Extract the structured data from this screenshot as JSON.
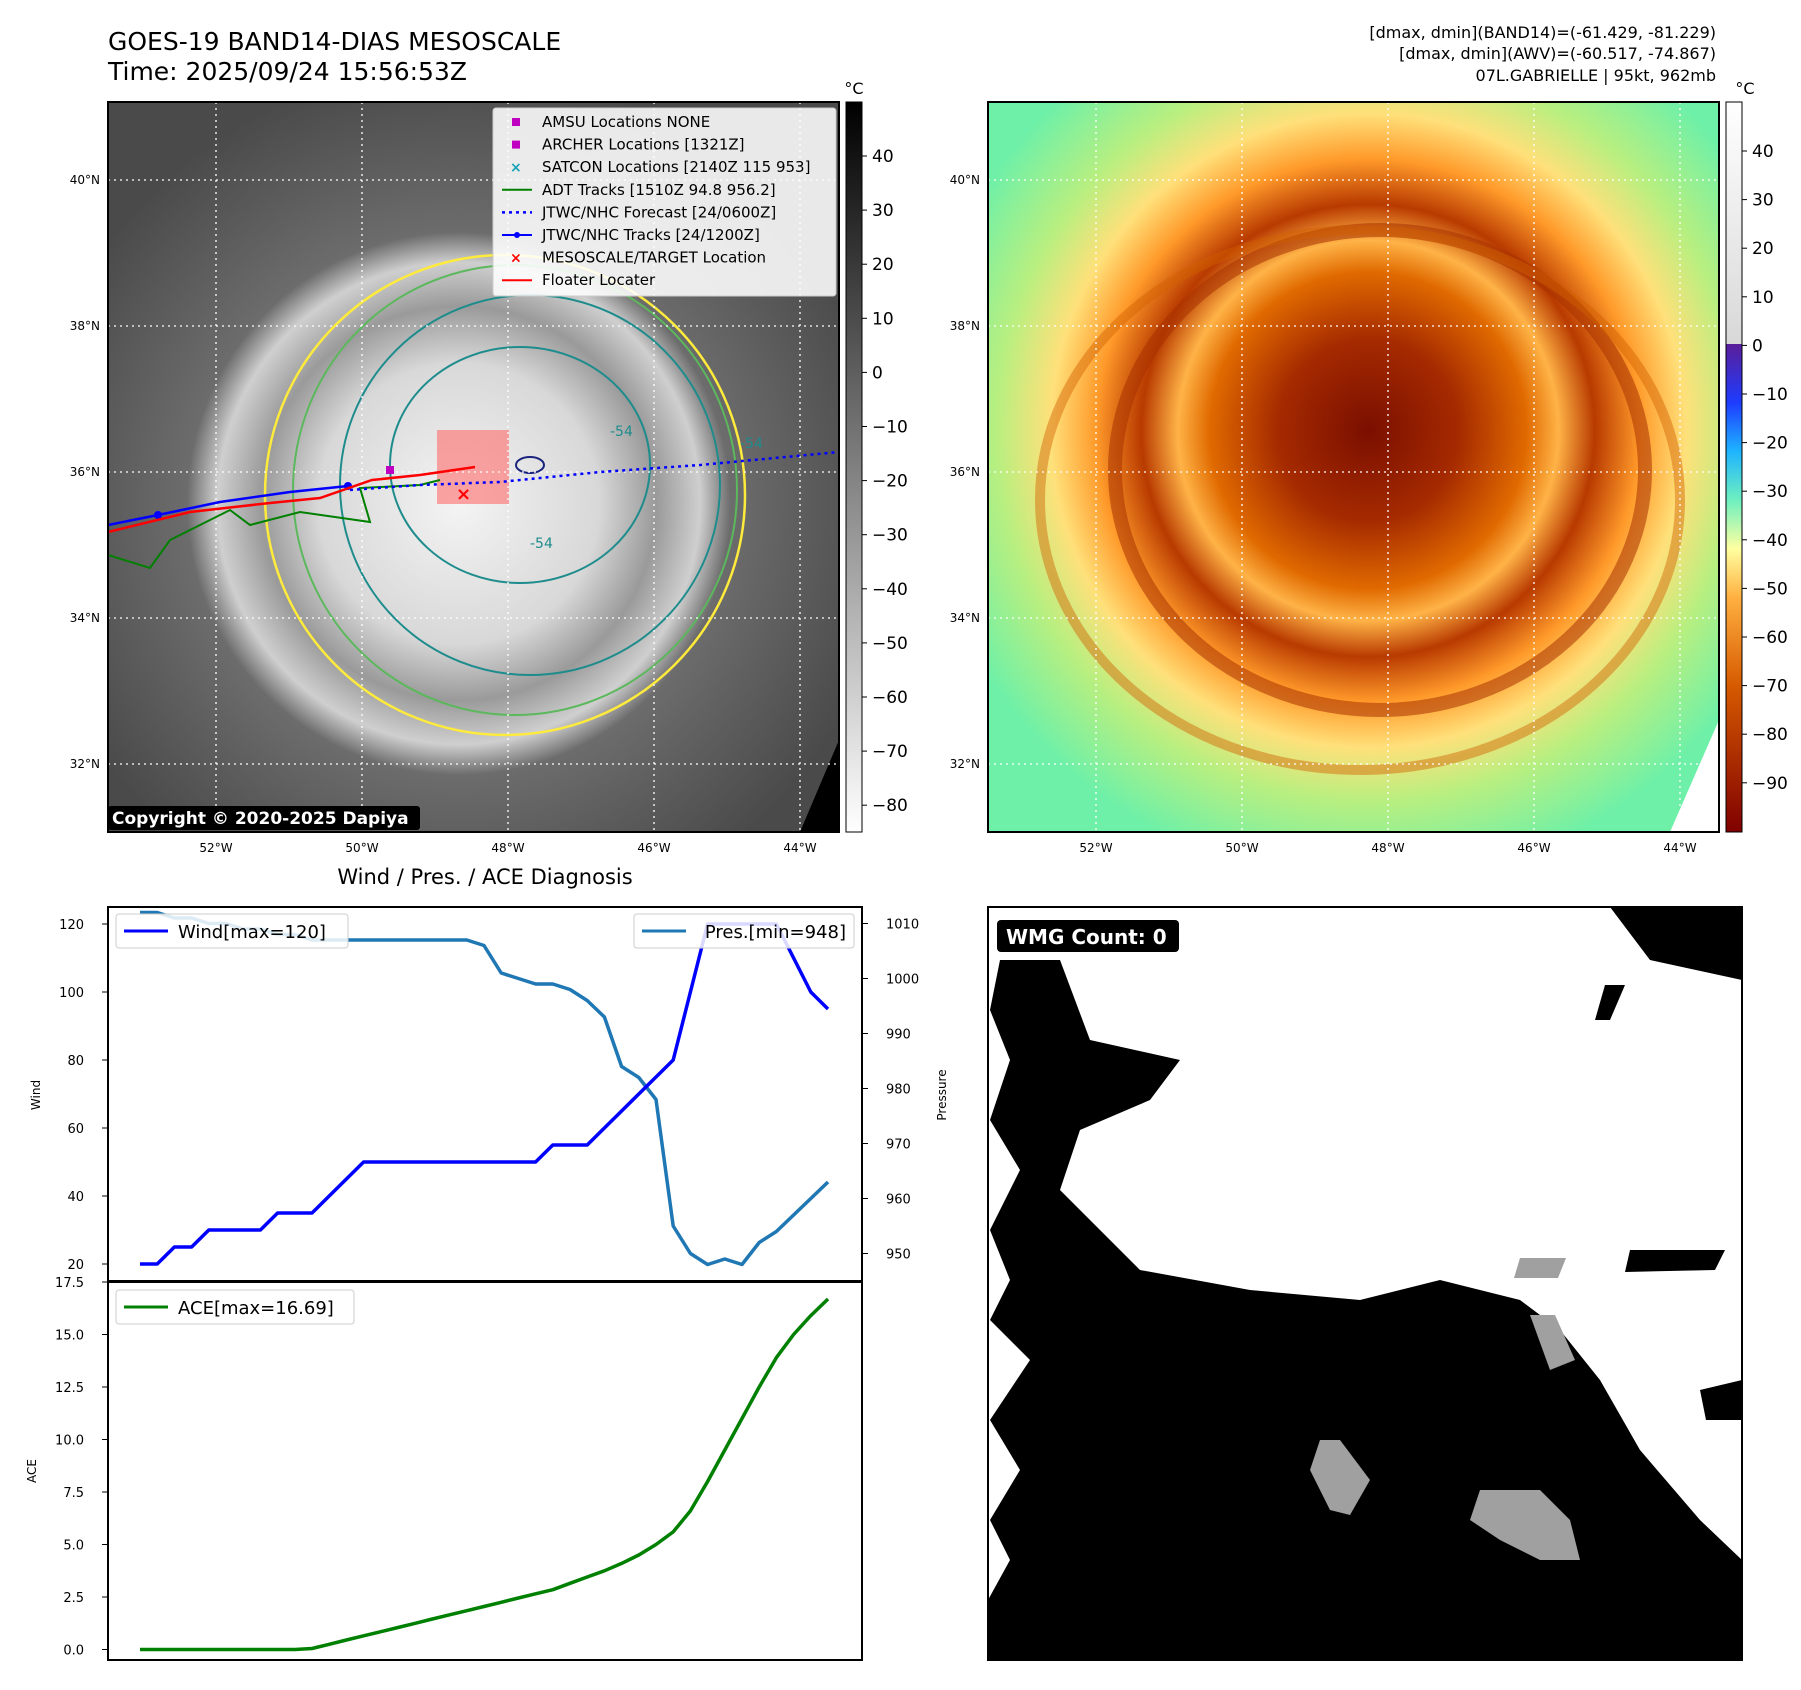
{
  "header": {
    "title_line1": "GOES-19 BAND14-DIAS MESOSCALE",
    "title_line2": "Time: 2025/09/24 15:56:53Z",
    "stats_line1": "[dmax, dmin](BAND14)=(-61.429, -81.229)",
    "stats_line2": "[dmax, dmin](AWV)=(-60.517, -74.867)",
    "stats_line3": "07L.GABRIELLE | 95kt, 962mb"
  },
  "ir_map": {
    "lat_labels": [
      "40°N",
      "38°N",
      "36°N",
      "34°N",
      "32°N"
    ],
    "lon_labels": [
      "52°W",
      "50°W",
      "48°W",
      "46°W",
      "44°W"
    ],
    "copyright": "Copyright © 2020-2025 Dapiya",
    "contour_label": "-54",
    "colorbar_unit": "°C",
    "colorbar_ticks": [
      "40",
      "30",
      "20",
      "10",
      "0",
      "−10",
      "−20",
      "−30",
      "−40",
      "−50",
      "−60",
      "−70",
      "−80"
    ],
    "legend": [
      {
        "label": "AMSU Locations NONE",
        "color": "#c000c0",
        "marker": "square"
      },
      {
        "label": "ARCHER Locations [1321Z]",
        "color": "#c000c0",
        "marker": "square"
      },
      {
        "label": "SATCON Locations [2140Z 115 953]",
        "color": "#17a2b8",
        "marker": "x"
      },
      {
        "label": "ADT Tracks [1510Z 94.8 956.2]",
        "color": "#008000",
        "marker": "line"
      },
      {
        "label": "JTWC/NHC Forecast [24/0600Z]",
        "color": "#0000ff",
        "marker": "dotted"
      },
      {
        "label": "JTWC/NHC Tracks [24/1200Z]",
        "color": "#0000ff",
        "marker": "line-dot"
      },
      {
        "label": "MESOSCALE/TARGET Location",
        "color": "#ff0000",
        "marker": "x"
      },
      {
        "label": "Floater Locater",
        "color": "#ff0000",
        "marker": "line"
      }
    ]
  },
  "awv_map": {
    "lat_labels": [
      "40°N",
      "38°N",
      "36°N",
      "34°N",
      "32°N"
    ],
    "lon_labels": [
      "52°W",
      "50°W",
      "48°W",
      "46°W",
      "44°W"
    ],
    "colorbar_unit": "°C",
    "colorbar_ticks": [
      "40",
      "30",
      "20",
      "10",
      "0",
      "−10",
      "−20",
      "−30",
      "−40",
      "−50",
      "−60",
      "−70",
      "−80",
      "−90"
    ]
  },
  "chart_data": [
    {
      "type": "line",
      "title": "Wind / Pres. / ACE Diagnosis",
      "ylabel": "Wind",
      "ylabel_right": "Pressure",
      "ylim": [
        15,
        125
      ],
      "ylim_right": [
        945,
        1013
      ],
      "yticks": [
        20,
        40,
        60,
        80,
        100,
        120
      ],
      "yticks_right": [
        950,
        960,
        970,
        980,
        990,
        1000,
        1010
      ],
      "x": [
        0,
        1,
        2,
        3,
        4,
        5,
        6,
        7,
        8,
        9,
        10,
        11,
        12,
        13,
        14,
        15,
        16,
        17,
        18,
        19,
        20,
        21,
        22,
        23,
        24,
        25,
        26,
        27,
        28,
        29,
        30,
        31,
        32,
        33,
        34,
        35,
        36,
        37,
        38,
        39,
        40
      ],
      "series": [
        {
          "name": "Wind[max=120]",
          "color": "#0000ff",
          "values": [
            20,
            20,
            25,
            25,
            30,
            30,
            30,
            30,
            35,
            35,
            35,
            40,
            45,
            50,
            50,
            50,
            50,
            50,
            50,
            50,
            50,
            50,
            50,
            50,
            55,
            55,
            55,
            60,
            65,
            70,
            75,
            80,
            100,
            120,
            120,
            120,
            120,
            120,
            110,
            100,
            95
          ]
        },
        {
          "name": "Pres.[min=948]",
          "color": "#1f77b4",
          "values": [
            1012,
            1012,
            1011,
            1011,
            1010,
            1010,
            1009,
            1009,
            1008,
            1008,
            1007,
            1007,
            1007,
            1007,
            1007,
            1007,
            1007,
            1007,
            1007,
            1007,
            1006,
            1001,
            1000,
            999,
            999,
            998,
            996,
            993,
            984,
            982,
            978,
            955,
            950,
            948,
            949,
            948,
            952,
            954,
            957,
            960,
            963
          ]
        }
      ]
    },
    {
      "type": "line",
      "ylabel": "ACE",
      "ylim": [
        -0.5,
        17.5
      ],
      "yticks": [
        "0.0",
        "2.5",
        "5.0",
        "7.5",
        "10.0",
        "12.5",
        "15.0",
        "17.5"
      ],
      "x": [
        0,
        1,
        2,
        3,
        4,
        5,
        6,
        7,
        8,
        9,
        10,
        11,
        12,
        13,
        14,
        15,
        16,
        17,
        18,
        19,
        20,
        21,
        22,
        23,
        24,
        25,
        26,
        27,
        28,
        29,
        30,
        31,
        32,
        33,
        34,
        35,
        36,
        37,
        38,
        39,
        40
      ],
      "series": [
        {
          "name": "ACE[max=16.69]",
          "color": "#008000",
          "values": [
            0,
            0,
            0,
            0,
            0,
            0,
            0,
            0,
            0,
            0,
            0.05,
            0.25,
            0.45,
            0.65,
            0.85,
            1.05,
            1.25,
            1.45,
            1.65,
            1.85,
            2.05,
            2.25,
            2.45,
            2.65,
            2.85,
            3.15,
            3.45,
            3.75,
            4.1,
            4.5,
            5.0,
            5.6,
            6.6,
            8.0,
            9.5,
            11.0,
            12.5,
            13.9,
            15.0,
            15.9,
            16.69
          ]
        }
      ]
    }
  ],
  "wmg": {
    "count_label": "WMG Count: 0"
  },
  "colors": {
    "ir_background": "#5a5a5a",
    "ir_core": "#e0e0e0",
    "awv_outer": "#72f0a0",
    "awv_core": "#8c1a00",
    "contour_yellow": "#ffeb3b",
    "contour_green": "#5cb85c",
    "contour_teal": "#1e8c8c"
  }
}
